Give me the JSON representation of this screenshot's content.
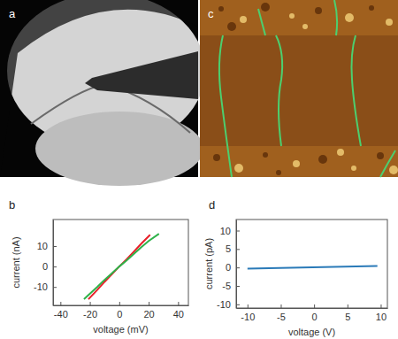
{
  "images": [
    {
      "label": "a"
    },
    {
      "label": "c"
    }
  ],
  "chart_data": [
    {
      "type": "line",
      "title": "b",
      "x_label": "voltage (mV)",
      "y_label": "current (nA)",
      "xlim": [
        -45,
        47
      ],
      "xticks": [
        -40,
        -20,
        0,
        20,
        40
      ],
      "ylim": [
        -19,
        23
      ],
      "yticks": [
        -10,
        0,
        10
      ],
      "series": [
        {
          "color": "#e8202a",
          "x": [
            -21,
            -15,
            -10,
            -5,
            0,
            5,
            10,
            15,
            21
          ],
          "values": [
            -16,
            -11.5,
            -7.5,
            -3.8,
            0,
            3.5,
            7.3,
            11.2,
            15.5
          ]
        },
        {
          "color": "#2fb24a",
          "x": [
            -24,
            -15,
            -10,
            -5,
            0,
            5,
            10,
            15,
            20,
            27
          ],
          "values": [
            -16,
            -10,
            -6.5,
            -3.3,
            0,
            3,
            6.2,
            9.5,
            12.5,
            16
          ]
        }
      ]
    },
    {
      "type": "line",
      "title": "d",
      "x_label": "voltage (V)",
      "y_label": "current (pA)",
      "xlim": [
        -11.7,
        11
      ],
      "xticks": [
        -10,
        -5,
        0,
        5,
        10
      ],
      "ylim": [
        -11,
        13
      ],
      "yticks": [
        -10,
        -5,
        0,
        5,
        10
      ],
      "series": [
        {
          "color": "#2a7ab8",
          "x": [
            -10,
            9.5
          ],
          "values": [
            -0.3,
            0.4
          ]
        }
      ]
    }
  ]
}
